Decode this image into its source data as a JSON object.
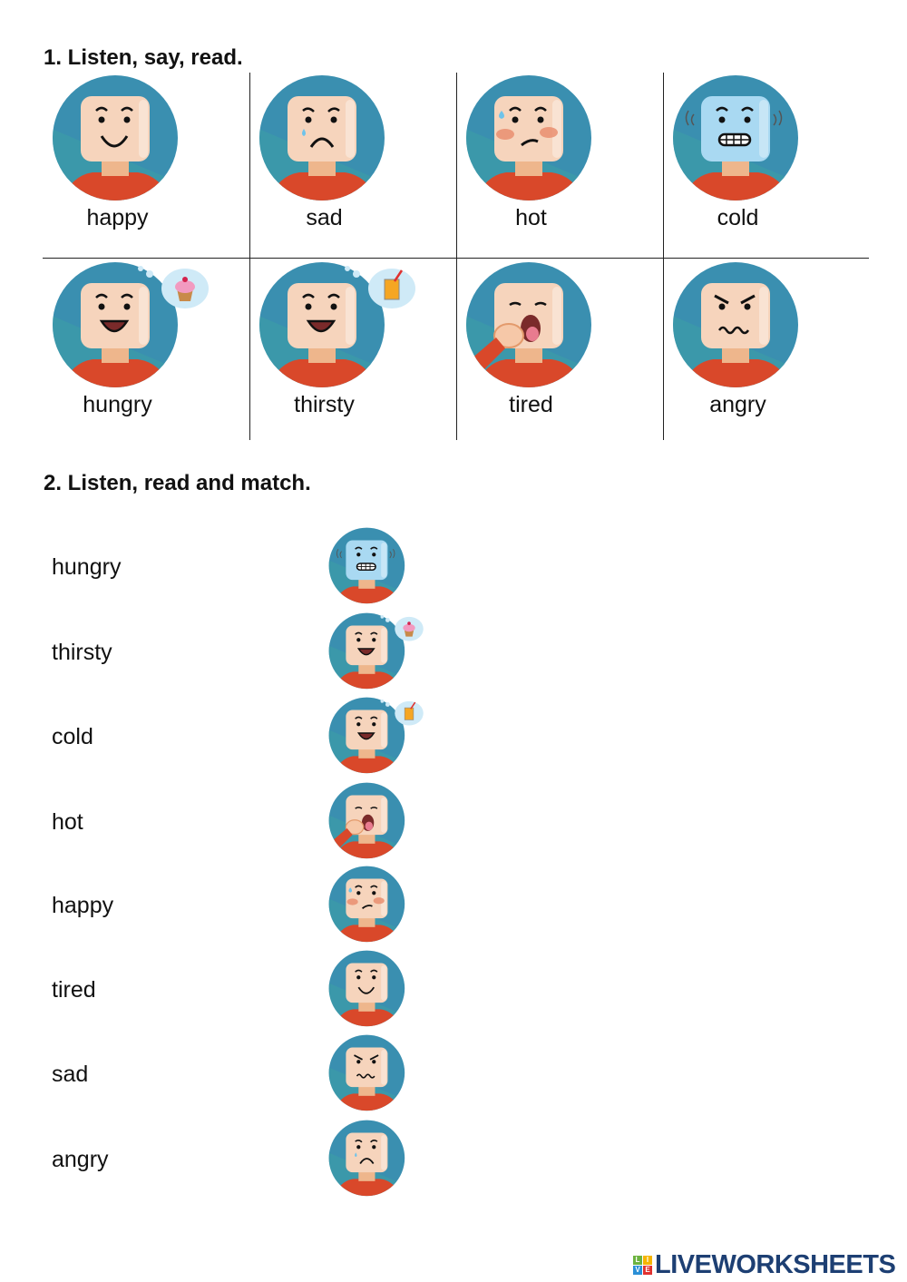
{
  "section1": {
    "title": "1. Listen, say, read.",
    "cells": [
      {
        "label": "happy",
        "icon": "happy"
      },
      {
        "label": "sad",
        "icon": "sad"
      },
      {
        "label": "hot",
        "icon": "hot"
      },
      {
        "label": "cold",
        "icon": "cold"
      },
      {
        "label": "hungry",
        "icon": "hungry"
      },
      {
        "label": "thirsty",
        "icon": "thirsty"
      },
      {
        "label": "tired",
        "icon": "tired"
      },
      {
        "label": "angry",
        "icon": "angry"
      }
    ]
  },
  "section2": {
    "title": "2. Listen, read and match.",
    "rows": [
      {
        "word": "hungry",
        "icon": "cold"
      },
      {
        "word": "thirsty",
        "icon": "hungry"
      },
      {
        "word": "cold",
        "icon": "thirsty"
      },
      {
        "word": "hot",
        "icon": "tired"
      },
      {
        "word": "happy",
        "icon": "hot"
      },
      {
        "word": "tired",
        "icon": "happy"
      },
      {
        "word": "sad",
        "icon": "angry"
      },
      {
        "word": "angry",
        "icon": "sad"
      }
    ]
  },
  "logo": {
    "text": "LIVEWORKSHEETS",
    "tiles": [
      "L",
      "I",
      "V",
      "E"
    ],
    "color": "#1d3f73"
  },
  "colors": {
    "background_circle": "#3a8fb0",
    "shirt": "#d9482a",
    "skin": "#f6d4bc",
    "cold_skin": "#a9d9f2"
  }
}
